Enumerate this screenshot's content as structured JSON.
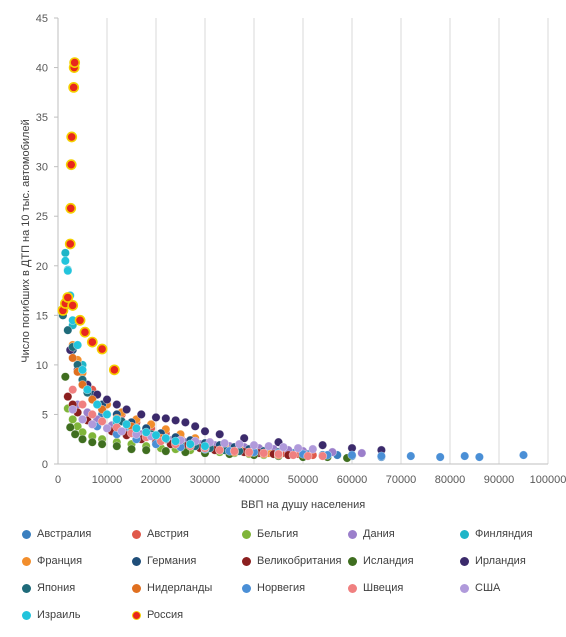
{
  "chart_data": {
    "type": "scatter",
    "title": "",
    "xlabel": "ВВП на душу населения",
    "ylabel": "Число погибших в ДТП на 10 тыс. автомобилей",
    "xlim": [
      0,
      100000
    ],
    "ylim": [
      0,
      45
    ],
    "x_ticks": [
      "0",
      "10000",
      "20000",
      "30000",
      "40000",
      "50000",
      "60000",
      "70000",
      "80000",
      "90000",
      "100000"
    ],
    "y_ticks": [
      "0",
      "5",
      "10",
      "15",
      "20",
      "25",
      "30",
      "35",
      "40",
      "45"
    ],
    "grid": "vertical",
    "legend_position": "bottom",
    "series": [
      {
        "name": "Австралия",
        "color": "#3A7FBF",
        "x": [
          9000,
          12000,
          15000,
          18000,
          21000,
          24000,
          27000,
          30000,
          33000,
          36000,
          39000,
          42000,
          45000,
          48000,
          51000,
          54000,
          57000,
          60000,
          66000
        ],
        "y": [
          5.0,
          4.3,
          3.8,
          3.3,
          3.0,
          2.6,
          2.3,
          2.1,
          1.9,
          1.7,
          1.5,
          1.3,
          1.2,
          1.1,
          1.0,
          0.9,
          0.9,
          0.8,
          0.7
        ]
      },
      {
        "name": "Австрия",
        "color": "#E0594B",
        "x": [
          7000,
          10000,
          13000,
          16000,
          19000,
          22000,
          25000,
          28000,
          31000,
          34000,
          37000,
          40000,
          43000,
          46000,
          49000,
          52000
        ],
        "y": [
          7.5,
          6.0,
          5.0,
          4.2,
          3.6,
          3.1,
          2.7,
          2.3,
          2.0,
          1.8,
          1.6,
          1.4,
          1.2,
          1.1,
          1.0,
          0.9
        ]
      },
      {
        "name": "Бельгия",
        "color": "#7FB539",
        "x": [
          2000,
          3000,
          4000,
          5000,
          7000,
          9000,
          12000,
          15000,
          18000,
          21000,
          24000,
          27000,
          30000,
          33000,
          36000,
          39000,
          42000,
          45000
        ],
        "y": [
          5.6,
          4.5,
          3.8,
          3.2,
          2.8,
          2.5,
          2.2,
          2.0,
          1.8,
          1.6,
          1.5,
          1.4,
          1.3,
          1.2,
          1.1,
          1.0,
          0.9,
          0.8
        ]
      },
      {
        "name": "Дания",
        "color": "#9B7FCB",
        "x": [
          4000,
          6000,
          8000,
          11000,
          14000,
          17000,
          20000,
          23000,
          26000,
          29000,
          32000,
          35000,
          38000,
          41000,
          44000,
          47000,
          50000,
          56000,
          62000
        ],
        "y": [
          6.0,
          5.2,
          4.5,
          3.9,
          3.4,
          3.0,
          2.7,
          2.4,
          2.2,
          2.0,
          1.9,
          1.8,
          1.7,
          1.6,
          1.5,
          1.4,
          1.3,
          1.2,
          1.1
        ]
      },
      {
        "name": "Финляндия",
        "color": "#1FB5C8",
        "x": [
          1500,
          2000,
          2500,
          3000,
          4000,
          5000,
          6000,
          8000,
          10000,
          12000,
          15000,
          18000,
          21000,
          25000,
          30000
        ],
        "y": [
          21.3,
          19.6,
          16.0,
          14.0,
          12.0,
          10.0,
          8.0,
          6.0,
          5.0,
          4.2,
          3.5,
          3.0,
          2.5,
          2.1,
          1.8
        ]
      },
      {
        "name": "Франция",
        "color": "#F28E2C",
        "x": [
          3000,
          4000,
          5000,
          6000,
          8000,
          10000,
          13000,
          16000,
          19000,
          22000,
          25000,
          28000,
          31000,
          34000,
          37000,
          40000,
          43000
        ],
        "y": [
          12.0,
          10.5,
          9.2,
          8.0,
          7.0,
          6.0,
          5.2,
          4.5,
          4.0,
          3.5,
          3.0,
          2.6,
          2.2,
          1.9,
          1.6,
          1.3,
          1.1
        ]
      },
      {
        "name": "Германия",
        "color": "#1F4E79",
        "x": [
          3000,
          4000,
          5000,
          7000,
          9000,
          12000,
          15000,
          18000,
          21000,
          24000,
          27000,
          30000,
          33000,
          36000,
          39000,
          42000,
          45000
        ],
        "y": [
          11.5,
          10.0,
          8.5,
          7.0,
          6.0,
          5.0,
          4.2,
          3.6,
          3.1,
          2.7,
          2.4,
          2.1,
          1.9,
          1.7,
          1.5,
          1.3,
          1.2
        ]
      },
      {
        "name": "Великобритания",
        "color": "#8B1F1F",
        "x": [
          2000,
          3000,
          4000,
          6000,
          8000,
          11000,
          14000,
          17000,
          20000,
          23000,
          26000,
          29000,
          32000,
          35000,
          38000,
          41000,
          44000,
          47000
        ],
        "y": [
          6.8,
          6.0,
          5.2,
          4.4,
          3.8,
          3.3,
          2.9,
          2.5,
          2.2,
          2.0,
          1.8,
          1.6,
          1.4,
          1.3,
          1.2,
          1.1,
          1.0,
          0.9
        ]
      },
      {
        "name": "Исландия",
        "color": "#3F6E1F",
        "x": [
          1500,
          2500,
          3500,
          5000,
          7000,
          9000,
          12000,
          15000,
          18000,
          22000,
          26000,
          30000,
          35000,
          40000,
          45000,
          50000,
          55000,
          59000
        ],
        "y": [
          8.8,
          3.7,
          3.0,
          2.5,
          2.2,
          2.0,
          1.8,
          1.5,
          1.4,
          1.3,
          1.2,
          1.1,
          1.0,
          0.9,
          0.8,
          0.7,
          0.7,
          0.6
        ]
      },
      {
        "name": "Ирландия",
        "color": "#3B2A6B",
        "x": [
          2500,
          4000,
          6000,
          8000,
          10000,
          12000,
          14000,
          17000,
          20000,
          22000,
          24000,
          26000,
          28000,
          30000,
          33000,
          38000,
          45000,
          54000,
          60000,
          66000
        ],
        "y": [
          11.5,
          9.5,
          8.0,
          7.0,
          6.5,
          6.0,
          5.5,
          5.0,
          4.7,
          4.6,
          4.4,
          4.2,
          3.8,
          3.3,
          3.0,
          2.6,
          2.2,
          1.9,
          1.6,
          1.4
        ]
      },
      {
        "name": "Япония",
        "color": "#1F6B7A",
        "x": [
          1000,
          2000,
          3000,
          4000,
          5000,
          6000,
          8000,
          10000,
          13000,
          16000,
          19000,
          22000,
          25000,
          28000,
          31000,
          34000,
          37000,
          40000
        ],
        "y": [
          15.0,
          13.5,
          11.8,
          10.0,
          8.5,
          7.2,
          6.0,
          5.0,
          4.3,
          3.6,
          3.0,
          2.5,
          2.1,
          1.8,
          1.6,
          1.4,
          1.3,
          1.2
        ]
      },
      {
        "name": "Нидерланды",
        "color": "#E07020",
        "x": [
          3000,
          4000,
          5000,
          7000,
          9000,
          12000,
          15000,
          18000,
          21000,
          24000,
          27000,
          30000,
          33000,
          36000,
          39000,
          42000,
          45000
        ],
        "y": [
          10.7,
          9.3,
          8.0,
          6.5,
          5.5,
          4.6,
          3.8,
          3.1,
          2.6,
          2.2,
          1.9,
          1.6,
          1.4,
          1.2,
          1.1,
          1.0,
          0.9
        ]
      },
      {
        "name": "Норвегия",
        "color": "#4A8FD6",
        "x": [
          5000,
          8000,
          12000,
          16000,
          20000,
          25000,
          30000,
          35000,
          40000,
          45000,
          50000,
          55000,
          60000,
          66000,
          72000,
          78000,
          83000,
          86000,
          95000
        ],
        "y": [
          4.5,
          3.8,
          3.0,
          2.5,
          2.0,
          1.7,
          1.5,
          1.3,
          1.2,
          1.1,
          1.0,
          0.9,
          0.9,
          0.8,
          0.8,
          0.7,
          0.8,
          0.7,
          0.9
        ]
      },
      {
        "name": "Швеция",
        "color": "#F08080",
        "x": [
          3000,
          5000,
          7000,
          9000,
          12000,
          15000,
          18000,
          21000,
          24000,
          27000,
          30000,
          33000,
          36000,
          39000,
          42000,
          45000,
          48000,
          51000,
          54000
        ],
        "y": [
          7.5,
          6.0,
          5.0,
          4.3,
          3.7,
          3.1,
          2.7,
          2.3,
          2.0,
          1.8,
          1.6,
          1.4,
          1.3,
          1.2,
          1.1,
          1.0,
          0.9,
          0.8,
          0.8
        ]
      },
      {
        "name": "США",
        "color": "#B09ADB",
        "x": [
          3000,
          5000,
          7000,
          10000,
          13000,
          16000,
          19000,
          22000,
          25000,
          28000,
          31000,
          34000,
          37000,
          40000,
          43000,
          46000,
          49000,
          52000
        ],
        "y": [
          5.5,
          4.5,
          4.0,
          3.6,
          3.3,
          3.0,
          2.8,
          2.6,
          2.4,
          2.3,
          2.2,
          2.1,
          2.0,
          1.9,
          1.8,
          1.7,
          1.6,
          1.5
        ]
      },
      {
        "name": "Израиль",
        "color": "#22C4DC",
        "x": [
          1500,
          2000,
          2500,
          3000,
          4000,
          5000,
          6000,
          8000,
          10000,
          12000,
          14000,
          16000,
          18000,
          20000,
          22000,
          24000,
          27000,
          30000
        ],
        "y": [
          20.5,
          19.5,
          17.0,
          14.5,
          12.0,
          9.5,
          7.5,
          6.0,
          5.0,
          4.5,
          4.0,
          3.6,
          3.2,
          2.9,
          2.6,
          2.3,
          2.0,
          1.8
        ]
      },
      {
        "name": "Россия",
        "color": "#E8271D",
        "x": [
          1000,
          1500,
          2000,
          2500,
          2600,
          2700,
          2800,
          3000,
          3200,
          3300,
          3400,
          4500,
          5500,
          7000,
          9000,
          11500
        ],
        "y": [
          15.5,
          16.2,
          16.8,
          22.2,
          25.8,
          30.2,
          33.0,
          16.0,
          38.0,
          40.0,
          40.5,
          14.5,
          13.3,
          12.3,
          11.6,
          9.5
        ]
      }
    ]
  }
}
